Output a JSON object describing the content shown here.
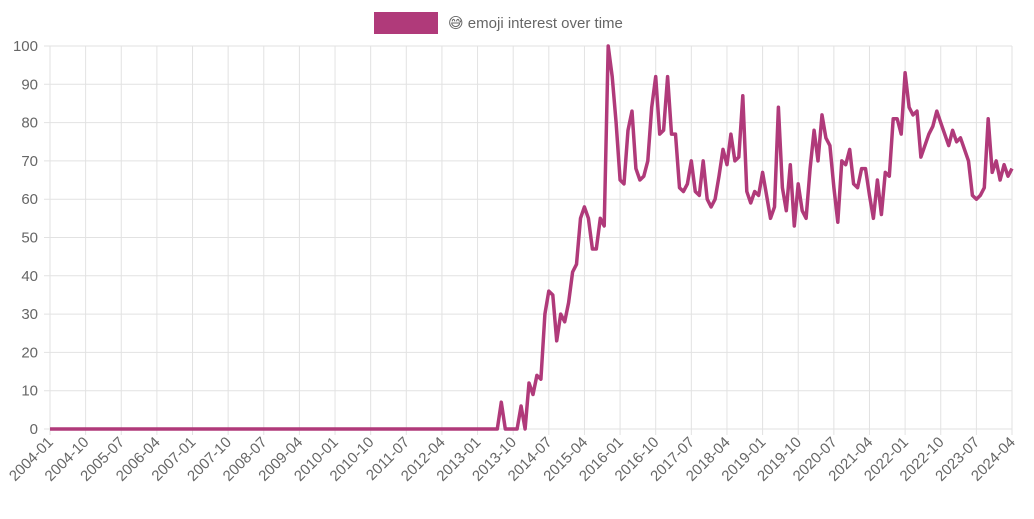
{
  "chart_data": {
    "type": "line",
    "categories": [
      "2004-01",
      null,
      null,
      null,
      null,
      null,
      null,
      null,
      null,
      "2004-10",
      null,
      null,
      null,
      null,
      null,
      null,
      null,
      null,
      "2005-07",
      null,
      null,
      null,
      null,
      null,
      null,
      null,
      null,
      "2006-04",
      null,
      null,
      null,
      null,
      null,
      null,
      null,
      null,
      "2007-01",
      null,
      null,
      null,
      null,
      null,
      null,
      null,
      null,
      "2007-10",
      null,
      null,
      null,
      null,
      null,
      null,
      null,
      null,
      "2008-07",
      null,
      null,
      null,
      null,
      null,
      null,
      null,
      null,
      "2009-04",
      null,
      null,
      null,
      null,
      null,
      null,
      null,
      null,
      "2010-01",
      null,
      null,
      null,
      null,
      null,
      null,
      null,
      null,
      "2010-10",
      null,
      null,
      null,
      null,
      null,
      null,
      null,
      null,
      "2011-07",
      null,
      null,
      null,
      null,
      null,
      null,
      null,
      null,
      "2012-04",
      null,
      null,
      null,
      null,
      null,
      null,
      null,
      null,
      "2013-01",
      null,
      null,
      null,
      null,
      null,
      null,
      null,
      null,
      "2013-10",
      null,
      null,
      null,
      null,
      null,
      null,
      null,
      null,
      "2014-07",
      null,
      null,
      null,
      null,
      null,
      null,
      null,
      null,
      "2015-04",
      null,
      null,
      null,
      null,
      null,
      null,
      null,
      null,
      "2016-01",
      null,
      null,
      null,
      null,
      null,
      null,
      null,
      null,
      "2016-10",
      null,
      null,
      null,
      null,
      null,
      null,
      null,
      null,
      "2017-07",
      null,
      null,
      null,
      null,
      null,
      null,
      null,
      null,
      "2018-04",
      null,
      null,
      null,
      null,
      null,
      null,
      null,
      null,
      "2019-01",
      null,
      null,
      null,
      null,
      null,
      null,
      null,
      null,
      "2019-10",
      null,
      null,
      null,
      null,
      null,
      null,
      null,
      null,
      "2020-07",
      null,
      null,
      null,
      null,
      null,
      null,
      null,
      null,
      "2021-04",
      null,
      null,
      null,
      null,
      null,
      null,
      null,
      null,
      "2022-01",
      null,
      null,
      null,
      null,
      null,
      null,
      null,
      null,
      "2022-10",
      null,
      null,
      null,
      null,
      null,
      null,
      null,
      null,
      "2023-07",
      null,
      null,
      null,
      null,
      null,
      null,
      null,
      null,
      "2024-04"
    ],
    "series": [
      {
        "name": "😅 emoji interest over time",
        "color": "#b03a7a",
        "values": [
          0,
          0,
          0,
          0,
          0,
          0,
          0,
          0,
          0,
          0,
          0,
          0,
          0,
          0,
          0,
          0,
          0,
          0,
          0,
          0,
          0,
          0,
          0,
          0,
          0,
          0,
          0,
          0,
          0,
          0,
          0,
          0,
          0,
          0,
          0,
          0,
          0,
          0,
          0,
          0,
          0,
          0,
          0,
          0,
          0,
          0,
          0,
          0,
          0,
          0,
          0,
          0,
          0,
          0,
          0,
          0,
          0,
          0,
          0,
          0,
          0,
          0,
          0,
          0,
          0,
          0,
          0,
          0,
          0,
          0,
          0,
          0,
          0,
          0,
          0,
          0,
          0,
          0,
          0,
          0,
          0,
          0,
          0,
          0,
          0,
          0,
          0,
          0,
          0,
          0,
          0,
          0,
          0,
          0,
          0,
          0,
          0,
          0,
          0,
          0,
          0,
          0,
          0,
          0,
          0,
          0,
          0,
          0,
          0,
          0,
          0,
          0,
          0,
          0,
          7,
          0,
          0,
          0,
          0,
          6,
          0,
          12,
          9,
          14,
          13,
          30,
          36,
          35,
          23,
          30,
          28,
          33,
          41,
          43,
          55,
          58,
          55,
          47,
          47,
          55,
          53,
          100,
          92,
          80,
          65,
          64,
          78,
          83,
          68,
          65,
          66,
          70,
          84,
          92,
          77,
          78,
          92,
          77,
          77,
          63,
          62,
          64,
          70,
          62,
          61,
          70,
          60,
          58,
          60,
          66,
          73,
          69,
          77,
          70,
          71,
          87,
          62,
          59,
          62,
          61,
          67,
          61,
          55,
          58,
          84,
          63,
          57,
          69,
          53,
          64,
          57,
          55,
          68,
          78,
          70,
          82,
          76,
          74,
          63,
          54,
          70,
          69,
          73,
          64,
          63,
          68,
          68,
          61,
          55,
          65,
          56,
          67,
          66,
          81,
          81,
          77,
          93,
          84,
          82,
          83,
          71,
          74,
          77,
          79,
          83,
          80,
          77,
          74,
          78,
          75,
          76,
          73,
          70,
          61,
          60,
          61,
          63,
          81,
          67,
          70,
          65,
          69,
          66,
          68
        ]
      }
    ],
    "ylim": [
      0,
      100
    ],
    "yticks": [
      0,
      10,
      20,
      30,
      40,
      50,
      60,
      70,
      80,
      90,
      100
    ],
    "grid": true
  }
}
